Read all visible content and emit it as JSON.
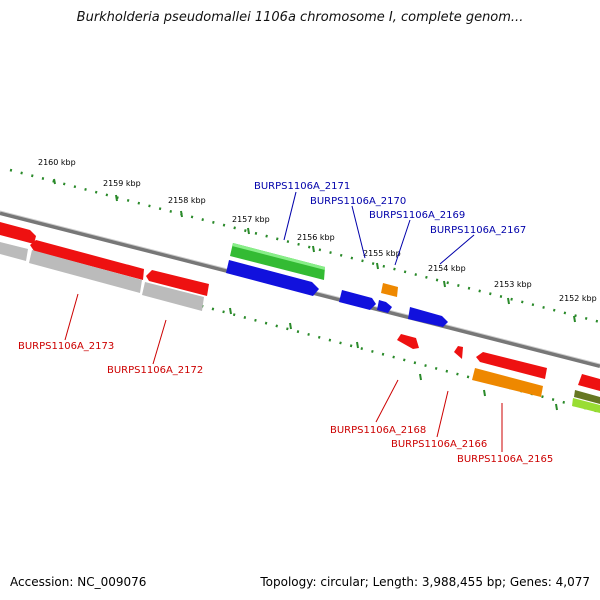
{
  "title": "Burkholderia pseudomallei 1106a chromosome I, complete genom...",
  "footer": {
    "accession": "Accession: NC_009076",
    "topology": "Topology: circular; Length: 3,988,455 bp; Genes: 4,077"
  },
  "ticks": [
    "2160 kbp",
    "2159 kbp",
    "2158 kbp",
    "2157 kbp",
    "2156 kbp",
    "2155 kbp",
    "2154 kbp",
    "2153 kbp",
    "2152 kbp"
  ],
  "labels_top": [
    "BURPS1106A_2171",
    "BURPS1106A_2170",
    "BURPS1106A_2169",
    "BURPS1106A_2167"
  ],
  "labels_bottom": [
    "BURPS1106A_2173",
    "BURPS1106A_2172",
    "BURPS1106A_2168",
    "BURPS1106A_2166",
    "BURPS1106A_2165"
  ],
  "colors": {
    "forward_label": "#0000aa",
    "reverse_label": "#cc0000",
    "tick": "#2a8a2a",
    "backbone": "#888888",
    "gene_red": "#ee1111",
    "gene_blue": "#1111dd",
    "gene_green": "#33bb33",
    "gene_orange": "#ee8800",
    "gene_gray": "#bbbbbb",
    "gene_lime": "#99dd33"
  }
}
